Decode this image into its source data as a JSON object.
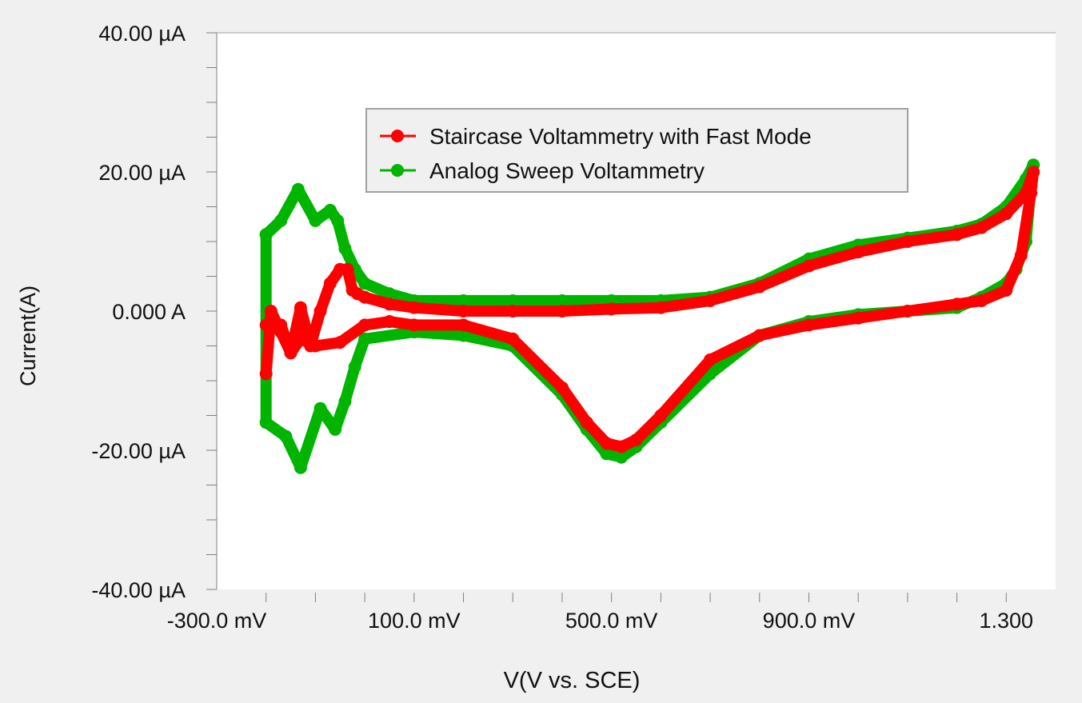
{
  "chart_data": {
    "type": "line",
    "title": "",
    "xlabel": "V(V vs. SCE)",
    "ylabel": "Current(A)",
    "xlim": [
      -300,
      1400
    ],
    "ylim": [
      -40,
      40
    ],
    "x_unit": "mV",
    "y_unit": "µA",
    "x_tick_labels": [
      {
        "value": -300,
        "label": "-300.0 mV"
      },
      {
        "value": 100,
        "label": "100.0 mV"
      },
      {
        "value": 500,
        "label": "500.0 mV"
      },
      {
        "value": 900,
        "label": "900.0 mV"
      },
      {
        "value": 1300,
        "label": "1.300"
      }
    ],
    "x_minor_ticks": [
      -200,
      -100,
      0,
      100,
      200,
      300,
      400,
      500,
      600,
      700,
      800,
      900,
      1000,
      1100,
      1200,
      1300
    ],
    "y_tick_labels": [
      {
        "value": 40,
        "label": "40.00 µA"
      },
      {
        "value": 20,
        "label": "20.00 µA"
      },
      {
        "value": 0,
        "label": "0.000 A"
      },
      {
        "value": -20,
        "label": "-20.00 µA"
      },
      {
        "value": -40,
        "label": "-40.00 µA"
      }
    ],
    "grid": false,
    "legend_position": "top-center",
    "series": [
      {
        "name": "Staircase Voltammetry with Fast Mode",
        "color": "#ff0000",
        "x": [
          -200,
          -190,
          -170,
          -150,
          -130,
          -110,
          -90,
          -70,
          -50,
          -35,
          -25,
          -15,
          0,
          50,
          100,
          200,
          300,
          400,
          500,
          600,
          700,
          800,
          900,
          1000,
          1100,
          1200,
          1250,
          1300,
          1340,
          1355,
          1350,
          1330,
          1300,
          1250,
          1200,
          1100,
          1000,
          900,
          800,
          700,
          600,
          550,
          520,
          490,
          450,
          400,
          300,
          200,
          100,
          50,
          0,
          -50,
          -100,
          -130,
          -150,
          -170,
          -200
        ],
        "y": [
          -9,
          0,
          -3,
          -6,
          0.5,
          -5,
          0,
          4,
          6,
          6,
          3,
          2.5,
          2,
          1,
          0.5,
          0,
          0,
          0,
          0.3,
          0.5,
          1.5,
          3.5,
          6.5,
          8.5,
          10,
          11,
          12,
          14,
          17,
          20,
          17,
          8,
          3,
          1.5,
          1,
          0,
          -1,
          -2,
          -3.5,
          -7,
          -15,
          -18.5,
          -19.5,
          -19,
          -16,
          -11,
          -4,
          -2,
          -2,
          -1.5,
          -2,
          -4.5,
          -5,
          -4,
          -6,
          -2,
          -2
        ]
      },
      {
        "name": "Analog Sweep Voltammetry",
        "color": "#00b400",
        "x": [
          -200,
          -170,
          -135,
          -100,
          -70,
          -55,
          -40,
          -20,
          0,
          50,
          100,
          200,
          300,
          400,
          500,
          600,
          700,
          800,
          900,
          1000,
          1100,
          1200,
          1250,
          1300,
          1340,
          1355,
          1350,
          1340,
          1320,
          1300,
          1250,
          1200,
          1100,
          1000,
          900,
          800,
          700,
          600,
          550,
          520,
          490,
          450,
          400,
          300,
          200,
          100,
          0,
          -20,
          -40,
          -60,
          -90,
          -130,
          -160,
          -200,
          -200
        ],
        "y": [
          11,
          13,
          17.5,
          13,
          14.5,
          13,
          9,
          6,
          4,
          2.5,
          1.5,
          1.5,
          1.5,
          1.5,
          1.5,
          1.5,
          2,
          4,
          7.5,
          9.5,
          10.5,
          11.5,
          12.5,
          15,
          19,
          21,
          18,
          10,
          6,
          4,
          2,
          0.5,
          0,
          -0.5,
          -1.5,
          -3.5,
          -9,
          -16,
          -19.5,
          -21,
          -20.5,
          -17,
          -12,
          -5,
          -3.5,
          -3,
          -4,
          -8,
          -13,
          -17,
          -14,
          -22.5,
          -18,
          -16,
          11
        ]
      }
    ]
  }
}
